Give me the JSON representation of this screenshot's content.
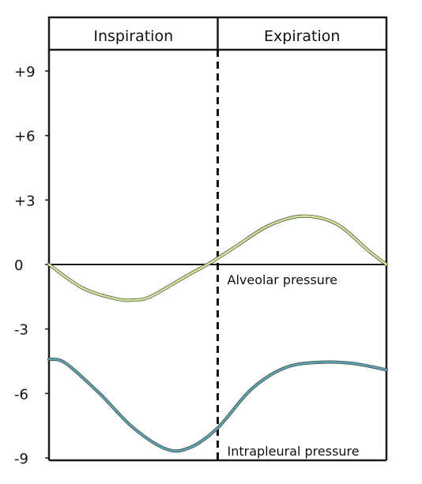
{
  "chart_data": {
    "type": "line",
    "title": "",
    "xlabel": "",
    "ylabel": "",
    "ylim": [
      -9,
      9
    ],
    "yticks": [
      {
        "value": 9,
        "label": "+9"
      },
      {
        "value": 6,
        "label": "+6"
      },
      {
        "value": 3,
        "label": "+3"
      },
      {
        "value": 0,
        "label": "0"
      },
      {
        "value": -3,
        "label": "-3"
      },
      {
        "value": -6,
        "label": "-6"
      },
      {
        "value": -9,
        "label": "-9"
      }
    ],
    "phases": [
      {
        "label": "Inspiration",
        "start": 0,
        "end": 0.5
      },
      {
        "label": "Expiration",
        "start": 0.5,
        "end": 1
      }
    ],
    "divider_at": 0.5,
    "grid": false,
    "legend": "none",
    "series": [
      {
        "name": "Alveolar pressure",
        "color": "#d4e29a",
        "x": [
          0,
          0.1,
          0.2,
          0.25,
          0.3,
          0.4,
          0.48,
          0.55,
          0.65,
          0.75,
          0.85,
          0.95,
          1.0
        ],
        "y": [
          0,
          -1.1,
          -1.6,
          -1.65,
          -1.5,
          -0.6,
          0.1,
          0.8,
          1.8,
          2.25,
          1.9,
          0.6,
          0
        ]
      },
      {
        "name": "Intrapleural pressure",
        "color": "#5fa0b0",
        "x": [
          0,
          0.05,
          0.15,
          0.25,
          0.35,
          0.42,
          0.5,
          0.6,
          0.7,
          0.8,
          0.9,
          1.0
        ],
        "y": [
          -4.4,
          -4.6,
          -6.0,
          -7.6,
          -8.6,
          -8.5,
          -7.6,
          -5.8,
          -4.8,
          -4.55,
          -4.6,
          -4.9
        ]
      }
    ]
  }
}
